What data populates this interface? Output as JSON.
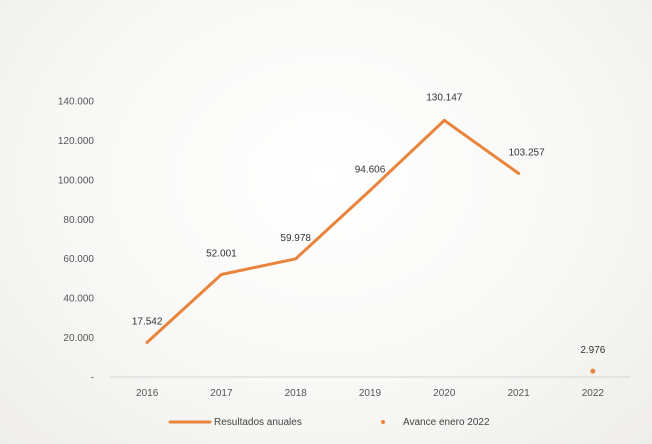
{
  "chart_data": {
    "type": "line",
    "categories": [
      "2016",
      "2017",
      "2018",
      "2019",
      "2020",
      "2021",
      "2022"
    ],
    "series": [
      {
        "name": "Resultados anuales",
        "values": [
          17542,
          52001,
          59978,
          94606,
          130147,
          103257,
          null
        ],
        "labels": [
          "17.542",
          "52.001",
          "59.978",
          "94.606",
          "130.147",
          "103.257",
          ""
        ],
        "color": "#e8843b",
        "style": "line"
      },
      {
        "name": "Avance enero 2022",
        "values": [
          null,
          null,
          null,
          null,
          null,
          null,
          2976
        ],
        "labels": [
          "",
          "",
          "",
          "",
          "",
          "",
          "2.976"
        ],
        "color": "#e8843b",
        "style": "marker"
      }
    ],
    "y_ticks": [
      0,
      20000,
      40000,
      60000,
      80000,
      100000,
      120000,
      140000
    ],
    "y_tick_labels": [
      "-",
      "20.000",
      "40.000",
      "60.000",
      "80.000",
      "100.000",
      "120.000",
      "140.000"
    ],
    "ylim": [
      0,
      140000
    ],
    "grid": false,
    "legend_position": "bottom"
  }
}
